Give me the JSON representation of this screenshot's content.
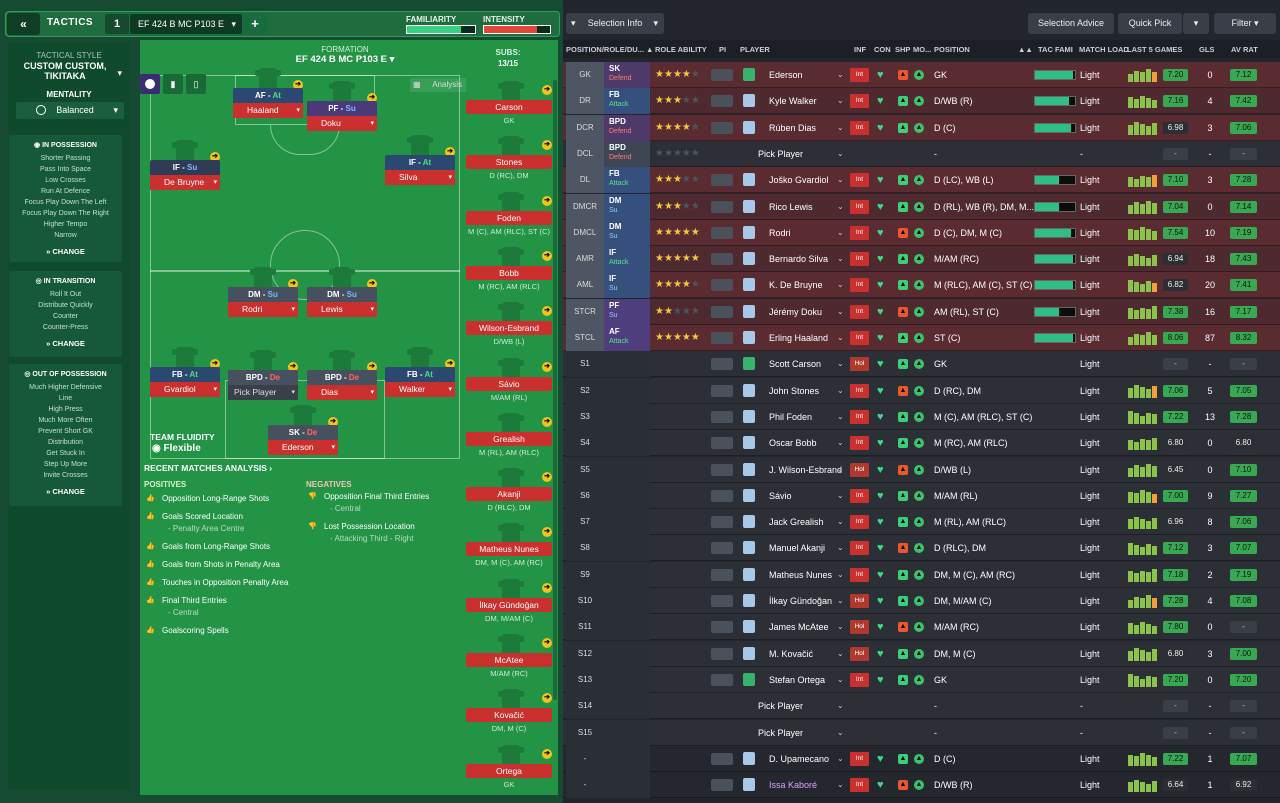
{
  "tactics": {
    "back_icon": "double-chevron-left-icon",
    "label": "TACTICS",
    "number": "1",
    "name": "EF 424 B MC P103 E",
    "familiarity_label": "FAMILIARITY",
    "intensity_label": "INTENSITY",
    "familiarity_level": 0.8,
    "intensity_level": 0.8
  },
  "style": {
    "title": "TACTICAL STYLE",
    "name": "CUSTOM CUSTOM, TIKITAKA",
    "mentality_label": "MENTALITY",
    "mentality_value": "Balanced",
    "change_label": "CHANGE",
    "in_possession": {
      "title": "IN POSSESSION",
      "items": [
        "Shorter Passing",
        "Pass Into Space",
        "Low Crosses",
        "Run At Defence",
        "Focus Play Down The Left",
        "Focus Play Down The Right",
        "Higher Tempo",
        "Narrow"
      ]
    },
    "in_transition": {
      "title": "IN TRANSITION",
      "items": [
        "Roll It Out",
        "Distribute Quickly",
        "Counter",
        "Counter-Press"
      ]
    },
    "out_of_possession": {
      "title": "OUT OF POSSESSION",
      "items": [
        "Much Higher Defensive",
        "Line",
        "High Press",
        "Much More Often",
        "Prevent Short GK",
        "Distribution",
        "Get Stuck In",
        "Step Up More",
        "Invite Crosses"
      ]
    }
  },
  "pitch": {
    "formation_label": "FORMATION",
    "formation_name": "EF 424 B MC P103 E",
    "analysis_label": "Analysis",
    "subs_label": "SUBS:",
    "subs_count": "13/15",
    "fluidity_label": "TEAM FLUIDITY",
    "fluidity_value": "Flexible",
    "players": [
      {
        "role": "AF",
        "duty": "At",
        "name": "Haaland"
      },
      {
        "role": "PF",
        "duty": "Su",
        "name": "Doku"
      },
      {
        "role": "IF",
        "duty": "Su",
        "name": "De Bruyne"
      },
      {
        "role": "IF",
        "duty": "At",
        "name": "Silva"
      },
      {
        "role": "DM",
        "duty": "Su",
        "name": "Rodri"
      },
      {
        "role": "DM",
        "duty": "Su",
        "name": "Lewis"
      },
      {
        "role": "FB",
        "duty": "At",
        "name": "Gvardiol"
      },
      {
        "role": "BPD",
        "duty": "De",
        "name": "Pick Player"
      },
      {
        "role": "BPD",
        "duty": "De",
        "name": "Dias"
      },
      {
        "role": "FB",
        "duty": "At",
        "name": "Walker"
      },
      {
        "role": "SK",
        "duty": "De",
        "name": "Ederson"
      }
    ],
    "subs": [
      {
        "name": "Carson",
        "pos": "GK"
      },
      {
        "name": "Stones",
        "pos": "D (RC), DM"
      },
      {
        "name": "Foden",
        "pos": "M (C), AM (RLC), ST (C)"
      },
      {
        "name": "Bobb",
        "pos": "M (RC), AM (RLC)"
      },
      {
        "name": "Wilson-Esbrand",
        "pos": "D/WB (L)"
      },
      {
        "name": "Sávio",
        "pos": "M/AM (RL)"
      },
      {
        "name": "Grealish",
        "pos": "M (RL), AM (RLC)"
      },
      {
        "name": "Akanji",
        "pos": "D (RLC), DM"
      },
      {
        "name": "Matheus Nunes",
        "pos": "DM, M (C), AM (RC)"
      },
      {
        "name": "İlkay Gündoğan",
        "pos": "DM, M/AM (C)"
      },
      {
        "name": "McAtee",
        "pos": "M/AM (RC)"
      },
      {
        "name": "Kovačić",
        "pos": "DM, M (C)"
      },
      {
        "name": "Ortega",
        "pos": "GK"
      }
    ],
    "recent_label": "RECENT MATCHES ANALYSIS ›",
    "positives_label": "POSITIVES",
    "negatives_label": "NEGATIVES",
    "positives": [
      {
        "text": "Opposition Long-Range Shots",
        "sub": ""
      },
      {
        "text": "Goals Scored Location",
        "sub": "- Penalty Area Centre"
      },
      {
        "text": "Goals from Long-Range Shots",
        "sub": ""
      },
      {
        "text": "Goals from Shots in Penalty Area",
        "sub": ""
      },
      {
        "text": "Touches in Opposition Penalty Area",
        "sub": ""
      },
      {
        "text": "Final Third Entries",
        "sub": "- Central"
      },
      {
        "text": "Goalscoring Spells",
        "sub": ""
      }
    ],
    "negatives": [
      {
        "text": "Opposition Final Third Entries",
        "sub": "- Central"
      },
      {
        "text": "Lost Possession Location",
        "sub": "- Attacking Third - Right"
      }
    ]
  },
  "toolbar": {
    "selection_info": "Selection Info",
    "selection_advice": "Selection Advice",
    "quick_pick": "Quick Pick",
    "filter": "Filter"
  },
  "columns": {
    "position": "POSITION/ROLE/DU...",
    "role_ability": "ROLE ABILITY",
    "pi": "PI",
    "player": "PLAYER",
    "inf": "INF",
    "con": "CON",
    "shp": "SHP",
    "mo": "MO...",
    "pos": "POSITION",
    "tac": "TAC FAMI",
    "load": "MATCH LOAD",
    "last5": "LAST 5 GAMES",
    "gls": "GLS",
    "avrat": "AV RAT"
  },
  "rows": [
    {
      "slot": "GK",
      "role": "SK",
      "duty": "Defend",
      "stars": 4,
      "player": "Ederson",
      "inf": "Int",
      "pos": "GK",
      "tac": 0.95,
      "load": "Light",
      "avg5": "7.20",
      "gls": "0",
      "avrat": "7.12",
      "kind": "sel"
    },
    {
      "slot": "DR",
      "role": "FB",
      "duty": "Attack",
      "stars": 3,
      "player": "Kyle Walker",
      "inf": "Int",
      "pos": "D/WB (R)",
      "tac": 0.85,
      "load": "Light",
      "avg5": "7.16",
      "gls": "4",
      "avrat": "7.42",
      "kind": "sel"
    },
    {
      "slot": "DCR",
      "role": "BPD",
      "duty": "Defend",
      "stars": 4,
      "player": "Rúben Dias",
      "inf": "Int",
      "pos": "D (C)",
      "tac": 0.9,
      "load": "Light",
      "avg5": "6.98",
      "gls": "3",
      "avrat": "7.06",
      "kind": "sel"
    },
    {
      "slot": "DCL",
      "role": "BPD",
      "duty": "Defend",
      "stars": 0,
      "player": "Pick Player",
      "inf": "",
      "pos": "-",
      "tac": 0,
      "load": "-",
      "avg5": "-",
      "gls": "-",
      "avrat": "-",
      "kind": "empty"
    },
    {
      "slot": "DL",
      "role": "FB",
      "duty": "Attack",
      "stars": 3,
      "player": "Joško Gvardiol",
      "inf": "Int",
      "pos": "D (LC), WB (L)",
      "tac": 0.6,
      "load": "Light",
      "avg5": "7.10",
      "gls": "3",
      "avrat": "7.28",
      "kind": "sel"
    },
    {
      "slot": "DMCR",
      "role": "DM",
      "duty": "Su",
      "stars": 3,
      "player": "Rico Lewis",
      "inf": "Int",
      "pos": "D (RL), WB (R), DM, M...",
      "tac": 0.6,
      "load": "Light",
      "avg5": "7.04",
      "gls": "0",
      "avrat": "7.14",
      "kind": "sel"
    },
    {
      "slot": "DMCL",
      "role": "DM",
      "duty": "Su",
      "stars": 5,
      "player": "Rodri",
      "inf": "Int",
      "pos": "D (C), DM, M (C)",
      "tac": 0.9,
      "load": "Light",
      "avg5": "7.54",
      "gls": "10",
      "avrat": "7.19",
      "kind": "sel"
    },
    {
      "slot": "AMR",
      "role": "IF",
      "duty": "Attack",
      "stars": 5,
      "player": "Bernardo Silva",
      "inf": "Int",
      "pos": "M/AM (RC)",
      "tac": 0.95,
      "load": "Light",
      "avg5": "6.94",
      "gls": "18",
      "avrat": "7.43",
      "kind": "sel"
    },
    {
      "slot": "AML",
      "role": "IF",
      "duty": "Su",
      "stars": 4,
      "player": "K. De Bruyne",
      "inf": "Int",
      "pos": "M (RLC), AM (C), ST (C)",
      "tac": 0.95,
      "load": "Light",
      "avg5": "6.82",
      "gls": "20",
      "avrat": "7.41",
      "kind": "sel"
    },
    {
      "slot": "STCR",
      "role": "PF",
      "duty": "Su",
      "stars": 2,
      "player": "Jérémy Doku",
      "inf": "Int",
      "pos": "AM (RL), ST (C)",
      "tac": 0.6,
      "load": "Light",
      "avg5": "7.38",
      "gls": "16",
      "avrat": "7.17",
      "kind": "sel"
    },
    {
      "slot": "STCL",
      "role": "AF",
      "duty": "Attack",
      "stars": 5,
      "player": "Erling Haaland",
      "inf": "Int",
      "pos": "ST (C)",
      "tac": 0.95,
      "load": "Light",
      "avg5": "8.06",
      "gls": "87",
      "avrat": "8.32",
      "kind": "sel"
    },
    {
      "slot": "S1",
      "role": "",
      "duty": "",
      "stars": -1,
      "player": "Scott Carson",
      "inf": "Hol",
      "pos": "GK",
      "tac": 0,
      "load": "Light",
      "avg5": "-",
      "gls": "-",
      "avrat": "-",
      "kind": "sub"
    },
    {
      "slot": "S2",
      "role": "",
      "duty": "",
      "stars": -1,
      "player": "John Stones",
      "inf": "Int",
      "pos": "D (RC), DM",
      "tac": 0,
      "load": "Light",
      "avg5": "7.06",
      "gls": "5",
      "avrat": "7.05",
      "kind": "sub"
    },
    {
      "slot": "S3",
      "role": "",
      "duty": "",
      "stars": -1,
      "player": "Phil Foden",
      "inf": "Int",
      "pos": "M (C), AM (RLC), ST (C)",
      "tac": 0,
      "load": "Light",
      "avg5": "7.22",
      "gls": "13",
      "avrat": "7.28",
      "kind": "sub"
    },
    {
      "slot": "S4",
      "role": "",
      "duty": "",
      "stars": -1,
      "player": "Oscar Bobb",
      "inf": "Int",
      "pos": "M (RC), AM (RLC)",
      "tac": 0,
      "load": "Light",
      "avg5": "6.80",
      "gls": "0",
      "avrat": "6.80",
      "kind": "sub"
    },
    {
      "slot": "S5",
      "role": "",
      "duty": "",
      "stars": -1,
      "player": "J. Wilson-Esbrand",
      "inf": "Hol",
      "pos": "D/WB (L)",
      "tac": 0,
      "load": "Light",
      "avg5": "6.45",
      "gls": "0",
      "avrat": "7.10",
      "kind": "sub"
    },
    {
      "slot": "S6",
      "role": "",
      "duty": "",
      "stars": -1,
      "player": "Sávio",
      "inf": "Int",
      "pos": "M/AM (RL)",
      "tac": 0,
      "load": "Light",
      "avg5": "7.00",
      "gls": "9",
      "avrat": "7.27",
      "kind": "sub"
    },
    {
      "slot": "S7",
      "role": "",
      "duty": "",
      "stars": -1,
      "player": "Jack Grealish",
      "inf": "Int",
      "pos": "M (RL), AM (RLC)",
      "tac": 0,
      "load": "Light",
      "avg5": "6.96",
      "gls": "8",
      "avrat": "7.06",
      "kind": "sub"
    },
    {
      "slot": "S8",
      "role": "",
      "duty": "",
      "stars": -1,
      "player": "Manuel Akanji",
      "inf": "Int",
      "pos": "D (RLC), DM",
      "tac": 0,
      "load": "Light",
      "avg5": "7.12",
      "gls": "3",
      "avrat": "7.07",
      "kind": "sub"
    },
    {
      "slot": "S9",
      "role": "",
      "duty": "",
      "stars": -1,
      "player": "Matheus Nunes",
      "inf": "Int",
      "pos": "DM, M (C), AM (RC)",
      "tac": 0,
      "load": "Light",
      "avg5": "7.18",
      "gls": "2",
      "avrat": "7.19",
      "kind": "sub"
    },
    {
      "slot": "S10",
      "role": "",
      "duty": "",
      "stars": -1,
      "player": "İlkay Gündoğan",
      "inf": "Hol",
      "pos": "DM, M/AM (C)",
      "tac": 0,
      "load": "Light",
      "avg5": "7.28",
      "gls": "4",
      "avrat": "7.08",
      "kind": "sub"
    },
    {
      "slot": "S11",
      "role": "",
      "duty": "",
      "stars": -1,
      "player": "James McAtee",
      "inf": "Hol",
      "pos": "M/AM (RC)",
      "tac": 0,
      "load": "Light",
      "avg5": "7.80",
      "gls": "0",
      "avrat": "-",
      "kind": "sub"
    },
    {
      "slot": "S12",
      "role": "",
      "duty": "",
      "stars": -1,
      "player": "M. Kovačić",
      "inf": "Hol",
      "pos": "DM, M (C)",
      "tac": 0,
      "load": "Light",
      "avg5": "6.80",
      "gls": "3",
      "avrat": "7.00",
      "kind": "sub"
    },
    {
      "slot": "S13",
      "role": "",
      "duty": "",
      "stars": -1,
      "player": "Stefan Ortega",
      "inf": "Int",
      "pos": "GK",
      "tac": 0,
      "load": "Light",
      "avg5": "7.20",
      "gls": "0",
      "avrat": "7.20",
      "kind": "sub"
    },
    {
      "slot": "S14",
      "role": "",
      "duty": "",
      "stars": -1,
      "player": "Pick Player",
      "inf": "",
      "pos": "-",
      "tac": 0,
      "load": "-",
      "avg5": "-",
      "gls": "-",
      "avrat": "-",
      "kind": "empty2"
    },
    {
      "slot": "S15",
      "role": "",
      "duty": "",
      "stars": -1,
      "player": "Pick Player",
      "inf": "",
      "pos": "-",
      "tac": 0,
      "load": "-",
      "avg5": "-",
      "gls": "-",
      "avrat": "-",
      "kind": "empty2"
    },
    {
      "slot": "-",
      "role": "",
      "duty": "",
      "stars": -1,
      "player": "D. Upamecano",
      "inf": "Int",
      "pos": "D (C)",
      "tac": 0,
      "load": "Light",
      "avg5": "7.22",
      "gls": "1",
      "avrat": "7.07",
      "kind": "resv"
    },
    {
      "slot": "-",
      "role": "",
      "duty": "",
      "stars": -1,
      "player": "Issa Kaboré",
      "inf": "Int",
      "pos": "D/WB (R)",
      "tac": 0,
      "load": "Light",
      "avg5": "6.64",
      "gls": "1",
      "avrat": "6.92",
      "kind": "resv"
    }
  ],
  "colors": {
    "accent": "#239346",
    "red": "#c9302e",
    "dark": "#22252b"
  }
}
